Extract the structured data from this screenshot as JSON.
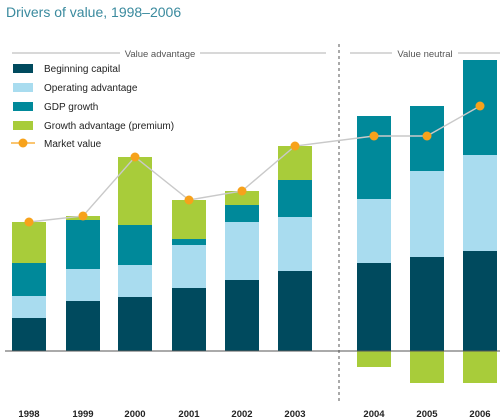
{
  "chart_data": {
    "type": "bar",
    "title": "Drivers of value, 1998–2006",
    "sections": [
      "Value advantage",
      "Value neutral"
    ],
    "categories": [
      "1998",
      "1999",
      "2000",
      "2001",
      "2002",
      "2003",
      "2004",
      "2005",
      "2006"
    ],
    "series": [
      {
        "name": "Beginning capital",
        "type": "bar",
        "color": "#004a5e",
        "values": [
          33,
          50,
          54,
          63,
          71,
          80,
          88,
          94,
          100
        ]
      },
      {
        "name": "Operating advantage",
        "type": "bar",
        "color": "#a9dcef",
        "values": [
          22,
          32,
          32,
          43,
          58,
          54,
          64,
          86,
          96
        ]
      },
      {
        "name": "GDP growth",
        "type": "bar",
        "color": "#00899a",
        "values": [
          33,
          49,
          40,
          6,
          17,
          37,
          83,
          65,
          95
        ]
      },
      {
        "name": "Growth advantage (premium)",
        "type": "bar",
        "color": "#a8cc3a",
        "values": [
          41,
          4,
          68,
          39,
          14,
          34,
          -16,
          -32,
          -32
        ]
      },
      {
        "name": "Market value",
        "type": "line",
        "color": "#f7a21b",
        "values": [
          129,
          135,
          194,
          151,
          160,
          205,
          215,
          215,
          245
        ]
      }
    ],
    "ylim": [
      -40,
      300
    ],
    "xlabel": "",
    "ylabel": "",
    "legend_position": "top-left",
    "grid": false,
    "section_divider": "between 2003 and 2004"
  }
}
